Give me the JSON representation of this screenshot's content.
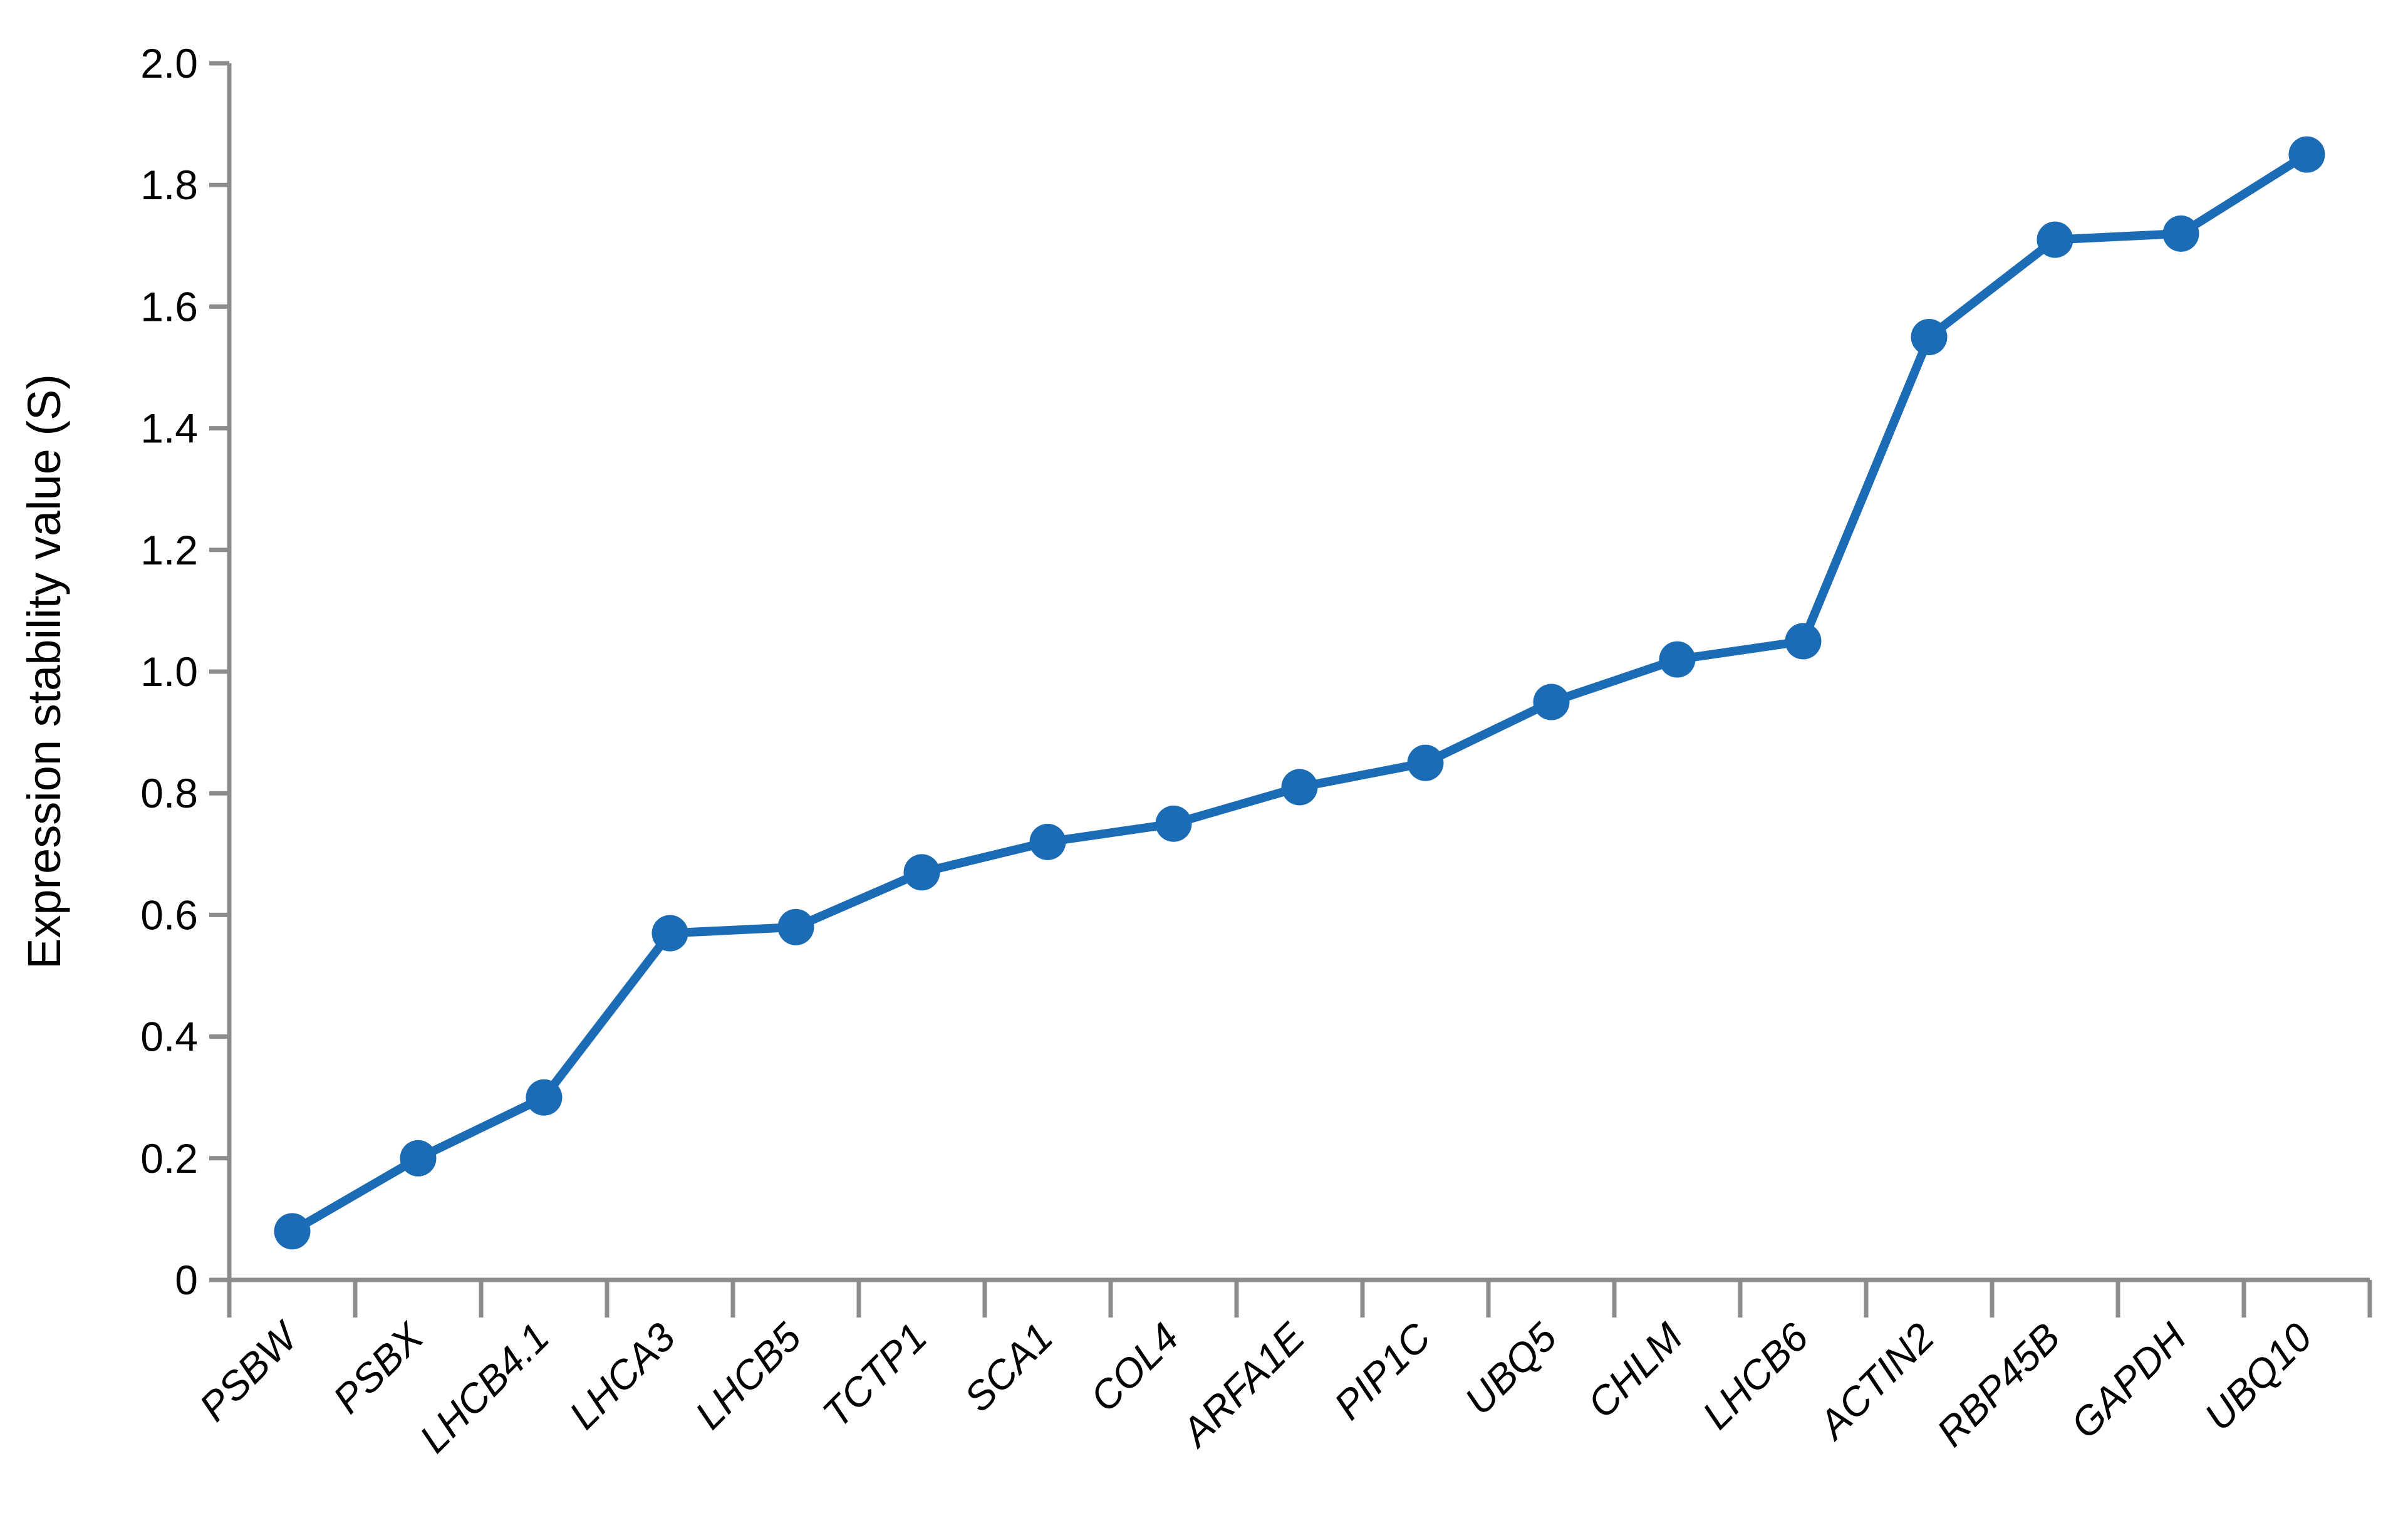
{
  "chart_data": {
    "type": "line",
    "title": "",
    "ylabel": "Expression stability value (S)",
    "xlabel": "",
    "ylim": [
      0,
      2.0
    ],
    "ytick_step": 0.2,
    "ytick_labels": [
      "0",
      "0.2",
      "0.4",
      "0.6",
      "0.8",
      "1.0",
      "1.2",
      "1.4",
      "1.6",
      "1.8",
      "2.0"
    ],
    "grid": false,
    "legend_position": "none",
    "categories": [
      "PSBW",
      "PSBX",
      "LHCB4.1",
      "LHCA3",
      "LHCB5",
      "TCTP1",
      "SCA1",
      "COL4",
      "ARFA1E",
      "PIP1C",
      "UBQ5",
      "CHLM",
      "LHCB6",
      "ACTIN2",
      "RBP45B",
      "GAPDH",
      "UBQ10"
    ],
    "series": [
      {
        "name": "Expression stability value (S)",
        "values": [
          0.08,
          0.2,
          0.3,
          0.57,
          0.58,
          0.67,
          0.72,
          0.75,
          0.81,
          0.85,
          0.95,
          1.02,
          1.05,
          1.55,
          1.71,
          1.72,
          1.85
        ]
      }
    ],
    "x_label_rotation_deg": -45,
    "x_label_style": "italic",
    "marker": "circle",
    "colors": {
      "line": "#1b6cb5",
      "marker": "#1b6cb5",
      "axis": "#8c8c8c",
      "text": "#000000",
      "background": "#ffffff"
    }
  }
}
